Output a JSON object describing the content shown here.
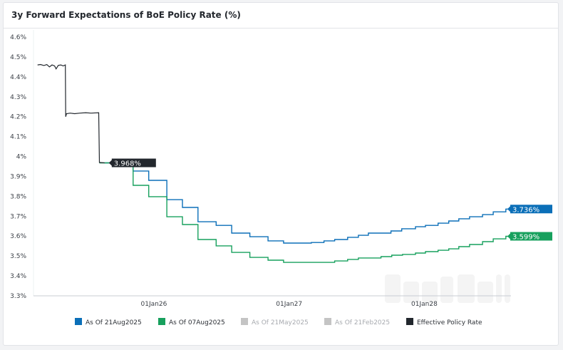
{
  "header": {
    "title": "3y Forward Expectations of BoE Policy Rate (%)"
  },
  "watermark": "FastBull",
  "chart_data": {
    "type": "line",
    "title": "3y Forward Expectations of BoE Policy Rate (%)",
    "xlabel": "",
    "ylabel": "",
    "ylim": [
      3.3,
      4.6
    ],
    "yticks": [
      {
        "v": 4.6,
        "label": "4.6%"
      },
      {
        "v": 4.5,
        "label": "4.5%"
      },
      {
        "v": 4.4,
        "label": "4.4%"
      },
      {
        "v": 4.3,
        "label": "4.3%"
      },
      {
        "v": 4.2,
        "label": "4.2%"
      },
      {
        "v": 4.1,
        "label": "4.1%"
      },
      {
        "v": 4.0,
        "label": "4%"
      },
      {
        "v": 3.9,
        "label": "3.9%"
      },
      {
        "v": 3.8,
        "label": "3.8%"
      },
      {
        "v": 3.7,
        "label": "3.7%"
      },
      {
        "v": 3.6,
        "label": "3.6%"
      },
      {
        "v": 3.5,
        "label": "3.5%"
      },
      {
        "v": 3.4,
        "label": "3.4%"
      },
      {
        "v": 3.3,
        "label": "3.3%"
      }
    ],
    "xlim": [
      "2025-02-10",
      "2028-08-18"
    ],
    "xticks": [
      {
        "d": "2026-01-01",
        "label": "01Jan26"
      },
      {
        "d": "2027-01-01",
        "label": "01Jan27"
      },
      {
        "d": "2028-01-01",
        "label": "01Jan28"
      }
    ],
    "grid": false,
    "legend_placement": "bottom",
    "series": [
      {
        "name": "As Of 21Aug2025",
        "color": "#0b6fb8",
        "step": true,
        "visible": true,
        "end_label": "3.736%",
        "points": [
          [
            "2025-08-21",
            3.968
          ],
          [
            "2025-11-06",
            3.927
          ],
          [
            "2025-12-18",
            3.88
          ],
          [
            "2026-02-05",
            3.783
          ],
          [
            "2026-03-19",
            3.744
          ],
          [
            "2026-04-30",
            3.672
          ],
          [
            "2026-06-18",
            3.654
          ],
          [
            "2026-07-30",
            3.615
          ],
          [
            "2026-09-17",
            3.597
          ],
          [
            "2026-11-05",
            3.576
          ],
          [
            "2026-12-17",
            3.565
          ],
          [
            "2027-03-02",
            3.568
          ],
          [
            "2027-04-05",
            3.576
          ],
          [
            "2027-05-04",
            3.583
          ],
          [
            "2027-06-08",
            3.594
          ],
          [
            "2027-07-07",
            3.604
          ],
          [
            "2027-08-03",
            3.615
          ],
          [
            "2027-10-03",
            3.626
          ],
          [
            "2027-11-01",
            3.637
          ],
          [
            "2027-12-08",
            3.647
          ],
          [
            "2028-01-04",
            3.654
          ],
          [
            "2028-02-07",
            3.665
          ],
          [
            "2028-03-07",
            3.676
          ],
          [
            "2028-04-03",
            3.687
          ],
          [
            "2028-05-02",
            3.697
          ],
          [
            "2028-06-06",
            3.708
          ],
          [
            "2028-07-05",
            3.722
          ],
          [
            "2028-08-08",
            3.736
          ],
          [
            "2028-08-18",
            3.736
          ]
        ]
      },
      {
        "name": "As Of 07Aug2025",
        "color": "#17a05d",
        "step": true,
        "visible": true,
        "end_label": "3.599%",
        "points": [
          [
            "2025-08-07",
            3.968
          ],
          [
            "2025-11-06",
            3.855
          ],
          [
            "2025-12-18",
            3.798
          ],
          [
            "2026-02-05",
            3.697
          ],
          [
            "2026-03-19",
            3.658
          ],
          [
            "2026-04-30",
            3.583
          ],
          [
            "2026-06-18",
            3.551
          ],
          [
            "2026-07-30",
            3.518
          ],
          [
            "2026-09-17",
            3.493
          ],
          [
            "2026-11-05",
            3.479
          ],
          [
            "2026-12-17",
            3.468
          ],
          [
            "2027-05-04",
            3.475
          ],
          [
            "2027-06-08",
            3.483
          ],
          [
            "2027-07-07",
            3.49
          ],
          [
            "2027-09-06",
            3.497
          ],
          [
            "2027-10-05",
            3.504
          ],
          [
            "2027-11-03",
            3.508
          ],
          [
            "2027-12-08",
            3.515
          ],
          [
            "2028-01-04",
            3.522
          ],
          [
            "2028-02-07",
            3.529
          ],
          [
            "2028-03-07",
            3.536
          ],
          [
            "2028-04-03",
            3.547
          ],
          [
            "2028-05-02",
            3.558
          ],
          [
            "2028-06-06",
            3.572
          ],
          [
            "2028-07-05",
            3.586
          ],
          [
            "2028-08-08",
            3.599
          ],
          [
            "2028-08-18",
            3.599
          ]
        ]
      },
      {
        "name": "As Of 21May2025",
        "color": "#c4c4c4",
        "step": true,
        "visible": false,
        "points": []
      },
      {
        "name": "As Of 21Feb2025",
        "color": "#c4c4c4",
        "step": true,
        "visible": false,
        "points": []
      },
      {
        "name": "Effective Policy Rate",
        "color": "#22272d",
        "step": false,
        "visible": true,
        "end_label": "3.968%",
        "points": [
          [
            "2025-02-21",
            4.46
          ],
          [
            "2025-03-01",
            4.462
          ],
          [
            "2025-03-10",
            4.457
          ],
          [
            "2025-03-18",
            4.462
          ],
          [
            "2025-03-25",
            4.45
          ],
          [
            "2025-04-01",
            4.46
          ],
          [
            "2025-04-08",
            4.455
          ],
          [
            "2025-04-12",
            4.44
          ],
          [
            "2025-04-18",
            4.458
          ],
          [
            "2025-04-25",
            4.46
          ],
          [
            "2025-05-01",
            4.455
          ],
          [
            "2025-05-07",
            4.46
          ],
          [
            "2025-05-08",
            4.2
          ],
          [
            "2025-05-10",
            4.215
          ],
          [
            "2025-05-20",
            4.218
          ],
          [
            "2025-06-01",
            4.215
          ],
          [
            "2025-06-15",
            4.218
          ],
          [
            "2025-07-01",
            4.22
          ],
          [
            "2025-07-15",
            4.218
          ],
          [
            "2025-08-05",
            4.22
          ],
          [
            "2025-08-07",
            3.97
          ],
          [
            "2025-08-21",
            3.968
          ]
        ]
      }
    ]
  }
}
